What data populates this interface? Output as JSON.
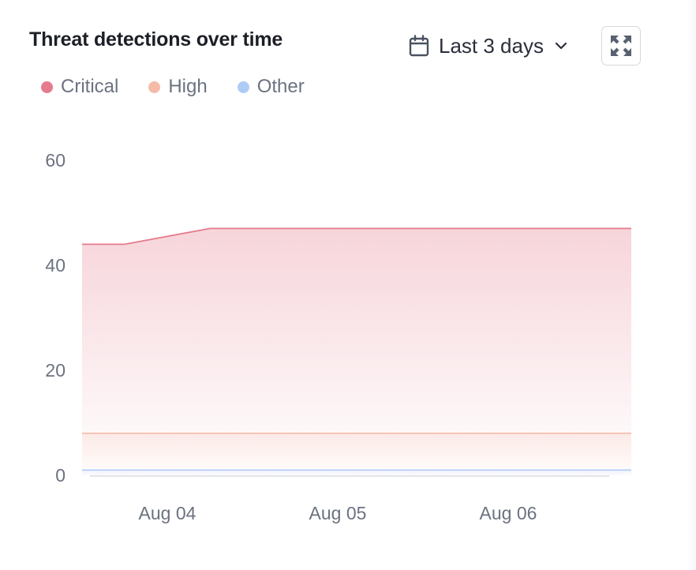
{
  "header": {
    "title": "Threat detections over time",
    "range_label": "Last 3 days"
  },
  "icons": {
    "calendar": "calendar-icon",
    "chevron": "chevron-down-icon",
    "expand": "expand-icon"
  },
  "colors": {
    "critical": "#e57b8c",
    "high": "#f5bba8",
    "other": "#aecbf7",
    "axis": "#d7dbe0"
  },
  "chart_data": {
    "type": "area",
    "title": "Threat detections over time",
    "xlabel": "",
    "ylabel": "",
    "ylim": [
      0,
      60
    ],
    "yticks": [
      0,
      20,
      40,
      60
    ],
    "x": [
      "2024-08-03 12:00",
      "2024-08-03 18:00",
      "2024-08-04 06:00",
      "2024-08-04 12:00",
      "2024-08-05 00:00",
      "2024-08-05 12:00",
      "2024-08-06 00:00",
      "2024-08-06 12:00",
      "2024-08-06 18:00"
    ],
    "xtick_labels": [
      "Aug 04",
      "Aug 05",
      "Aug 06"
    ],
    "xtick_positions": [
      "2024-08-04 00:00",
      "2024-08-05 00:00",
      "2024-08-06 00:00"
    ],
    "legend_position": "top-left",
    "grid": false,
    "series": [
      {
        "name": "Critical",
        "values": [
          44,
          44,
          47,
          47,
          47,
          47,
          47,
          47,
          47
        ]
      },
      {
        "name": "High",
        "values": [
          8,
          8,
          8,
          8,
          8,
          8,
          8,
          8,
          8
        ]
      },
      {
        "name": "Other",
        "values": [
          1,
          1,
          1,
          1,
          1,
          1,
          1,
          1,
          1
        ]
      }
    ]
  }
}
